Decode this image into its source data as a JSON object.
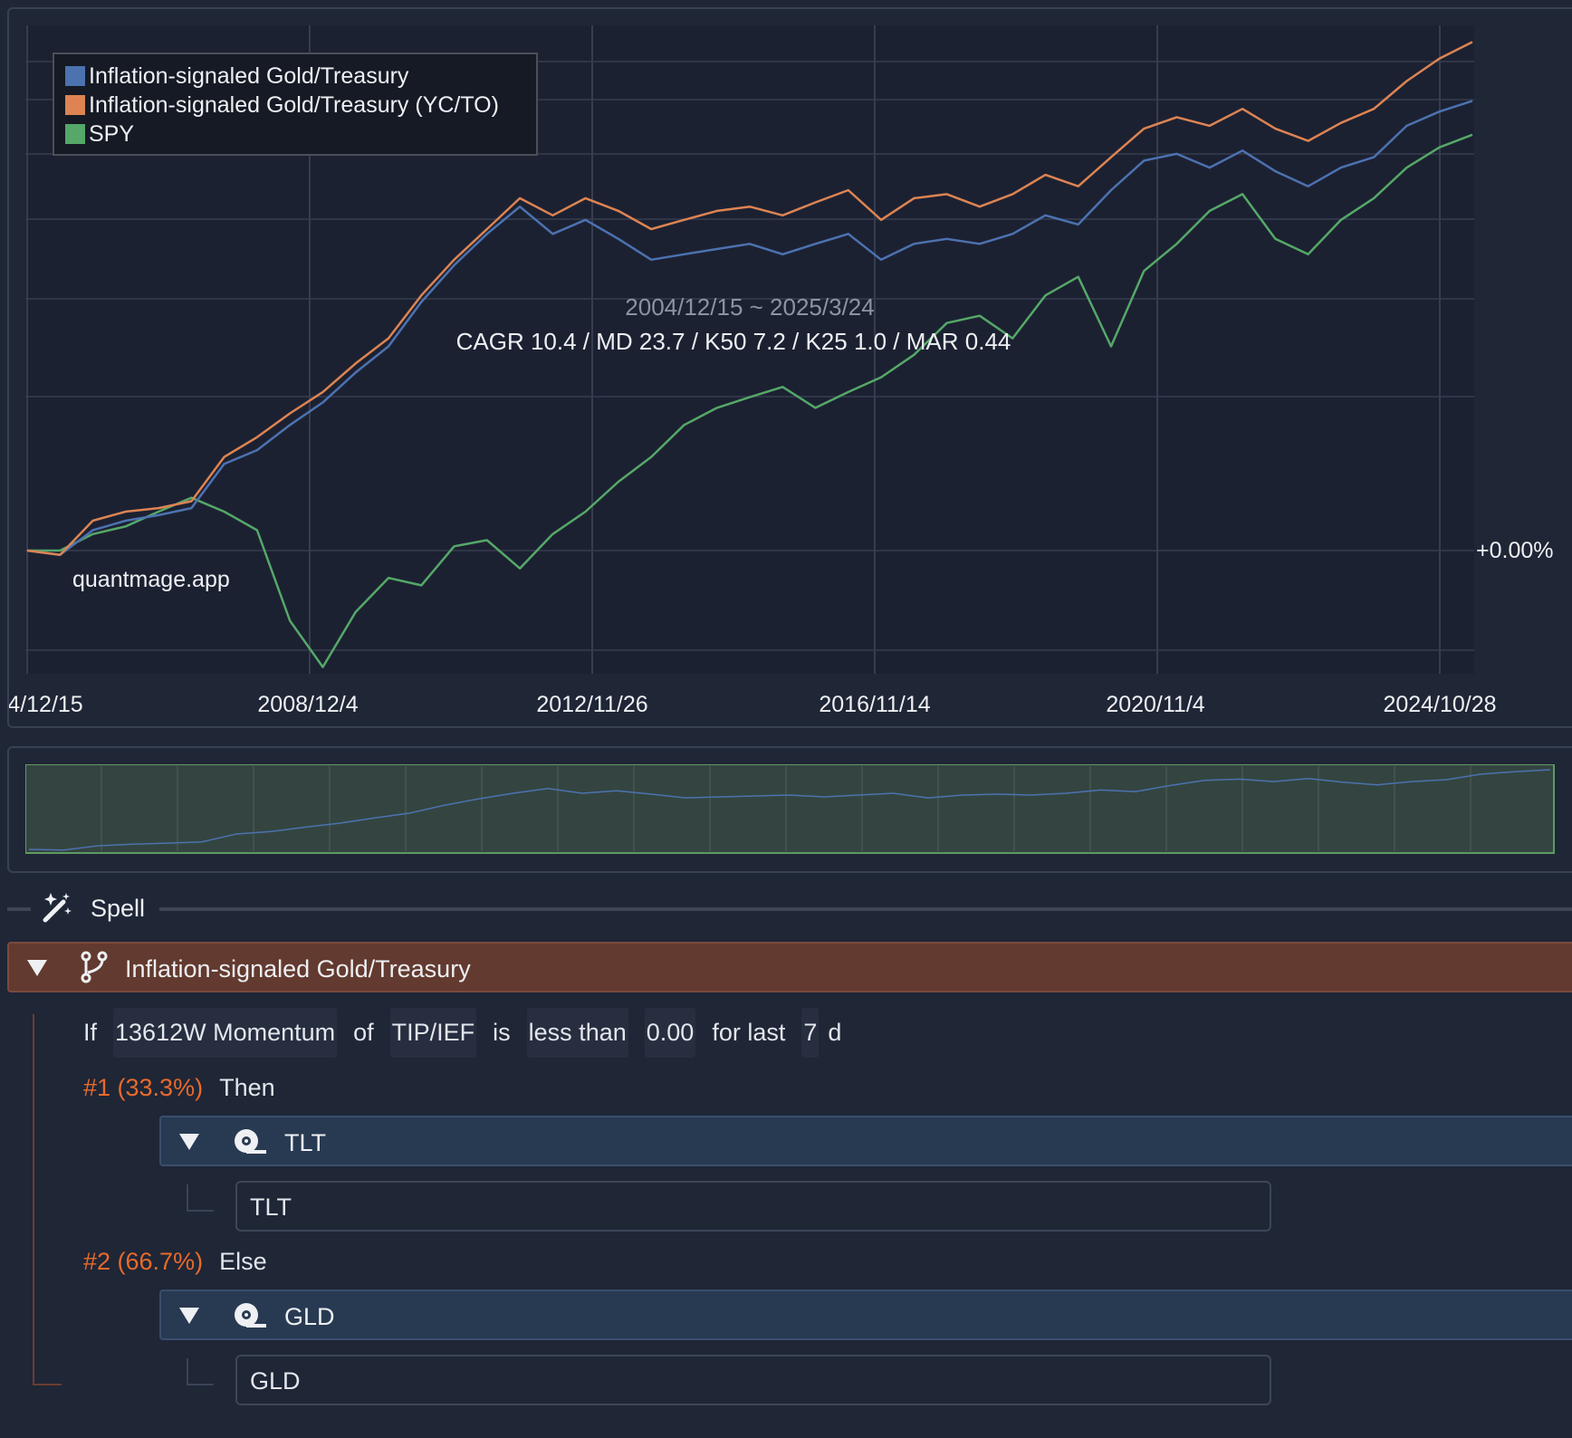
{
  "chart": {
    "legend": [
      {
        "label": "Inflation-signaled Gold/Treasury",
        "color": "#4c72b0"
      },
      {
        "label": "Inflation-signaled Gold/Treasury (YC/TO)",
        "color": "#dd8452"
      },
      {
        "label": "SPY",
        "color": "#55a868"
      }
    ],
    "date_range": "2004/12/15 ~ 2025/3/24",
    "stats": "CAGR 10.4 / MD 23.7 / K50 7.2 / K25 1.0 / MAR 0.44",
    "watermark": "quantmage.app",
    "baseline_label": "+0.00%",
    "x_ticks": [
      "4/12/15",
      "2008/12/4",
      "2012/11/26",
      "2016/11/14",
      "2020/11/4",
      "2024/10/28"
    ]
  },
  "chart_data": {
    "type": "line",
    "x": [
      "2004/12/15",
      "2005/6",
      "2006/1",
      "2006/6",
      "2007/1",
      "2007/6",
      "2008/1",
      "2008/6",
      "2008/12",
      "2009/3",
      "2009/6",
      "2010/1",
      "2010/6",
      "2011/1",
      "2011/6",
      "2011/9",
      "2012/1",
      "2012/6",
      "2013/1",
      "2013/6",
      "2014/1",
      "2014/6",
      "2015/1",
      "2015/6",
      "2016/1",
      "2016/6",
      "2016/11",
      "2017/6",
      "2018/1",
      "2018/6",
      "2019/1",
      "2019/6",
      "2020/1",
      "2020/3",
      "2020/8",
      "2021/1",
      "2021/6",
      "2022/1",
      "2022/6",
      "2022/10",
      "2023/6",
      "2024/1",
      "2024/6",
      "2024/10",
      "2025/3/24"
    ],
    "log_scale": true,
    "grid": true,
    "legend_position": "top-left",
    "series": [
      {
        "name": "Inflation-signaled Gold/Treasury",
        "values": [
          1.0,
          0.98,
          1.1,
          1.15,
          1.18,
          1.22,
          1.5,
          1.6,
          1.8,
          2.0,
          2.3,
          2.6,
          3.2,
          3.8,
          4.4,
          5.0,
          4.4,
          4.7,
          4.3,
          3.9,
          4.0,
          4.1,
          4.2,
          4.0,
          4.2,
          4.4,
          3.9,
          4.2,
          4.3,
          4.2,
          4.4,
          4.8,
          4.6,
          5.4,
          6.2,
          6.4,
          6.0,
          6.5,
          5.9,
          5.5,
          6.0,
          6.3,
          7.3,
          7.8,
          8.2
        ]
      },
      {
        "name": "Inflation-signaled Gold/Treasury (YC/TO)",
        "values": [
          1.0,
          0.98,
          1.15,
          1.2,
          1.22,
          1.26,
          1.55,
          1.7,
          1.9,
          2.1,
          2.4,
          2.7,
          3.3,
          3.9,
          4.5,
          5.2,
          4.8,
          5.2,
          4.9,
          4.5,
          4.7,
          4.9,
          5.0,
          4.8,
          5.1,
          5.4,
          4.7,
          5.2,
          5.3,
          5.0,
          5.3,
          5.8,
          5.5,
          6.3,
          7.2,
          7.6,
          7.3,
          7.9,
          7.2,
          6.8,
          7.4,
          7.9,
          9.0,
          10.0,
          10.8
        ]
      },
      {
        "name": "SPY",
        "values": [
          1.0,
          1.0,
          1.08,
          1.12,
          1.2,
          1.28,
          1.2,
          1.1,
          0.72,
          0.58,
          0.75,
          0.88,
          0.85,
          1.02,
          1.05,
          0.92,
          1.08,
          1.2,
          1.38,
          1.55,
          1.8,
          1.95,
          2.05,
          2.15,
          1.95,
          2.1,
          2.25,
          2.5,
          2.9,
          3.0,
          2.7,
          3.3,
          3.6,
          2.6,
          3.7,
          4.2,
          4.9,
          5.3,
          4.3,
          4.0,
          4.7,
          5.2,
          6.0,
          6.6,
          7.0
        ]
      }
    ]
  },
  "spell": {
    "label": "Spell"
  },
  "strategy": {
    "title": "Inflation-signaled Gold/Treasury",
    "condition": {
      "if": "If",
      "indicator": "13612W Momentum",
      "of": "of",
      "ticker": "TIP/IEF",
      "is": "is",
      "comparator": "less than",
      "threshold": "0.00",
      "for_last": "for last",
      "days": "7",
      "unit": "d"
    },
    "branches": [
      {
        "tag": "#1 (33.3%)",
        "word": "Then",
        "asset": "TLT",
        "ticker": "TLT"
      },
      {
        "tag": "#2 (66.7%)",
        "word": "Else",
        "asset": "GLD",
        "ticker": "GLD"
      }
    ]
  }
}
